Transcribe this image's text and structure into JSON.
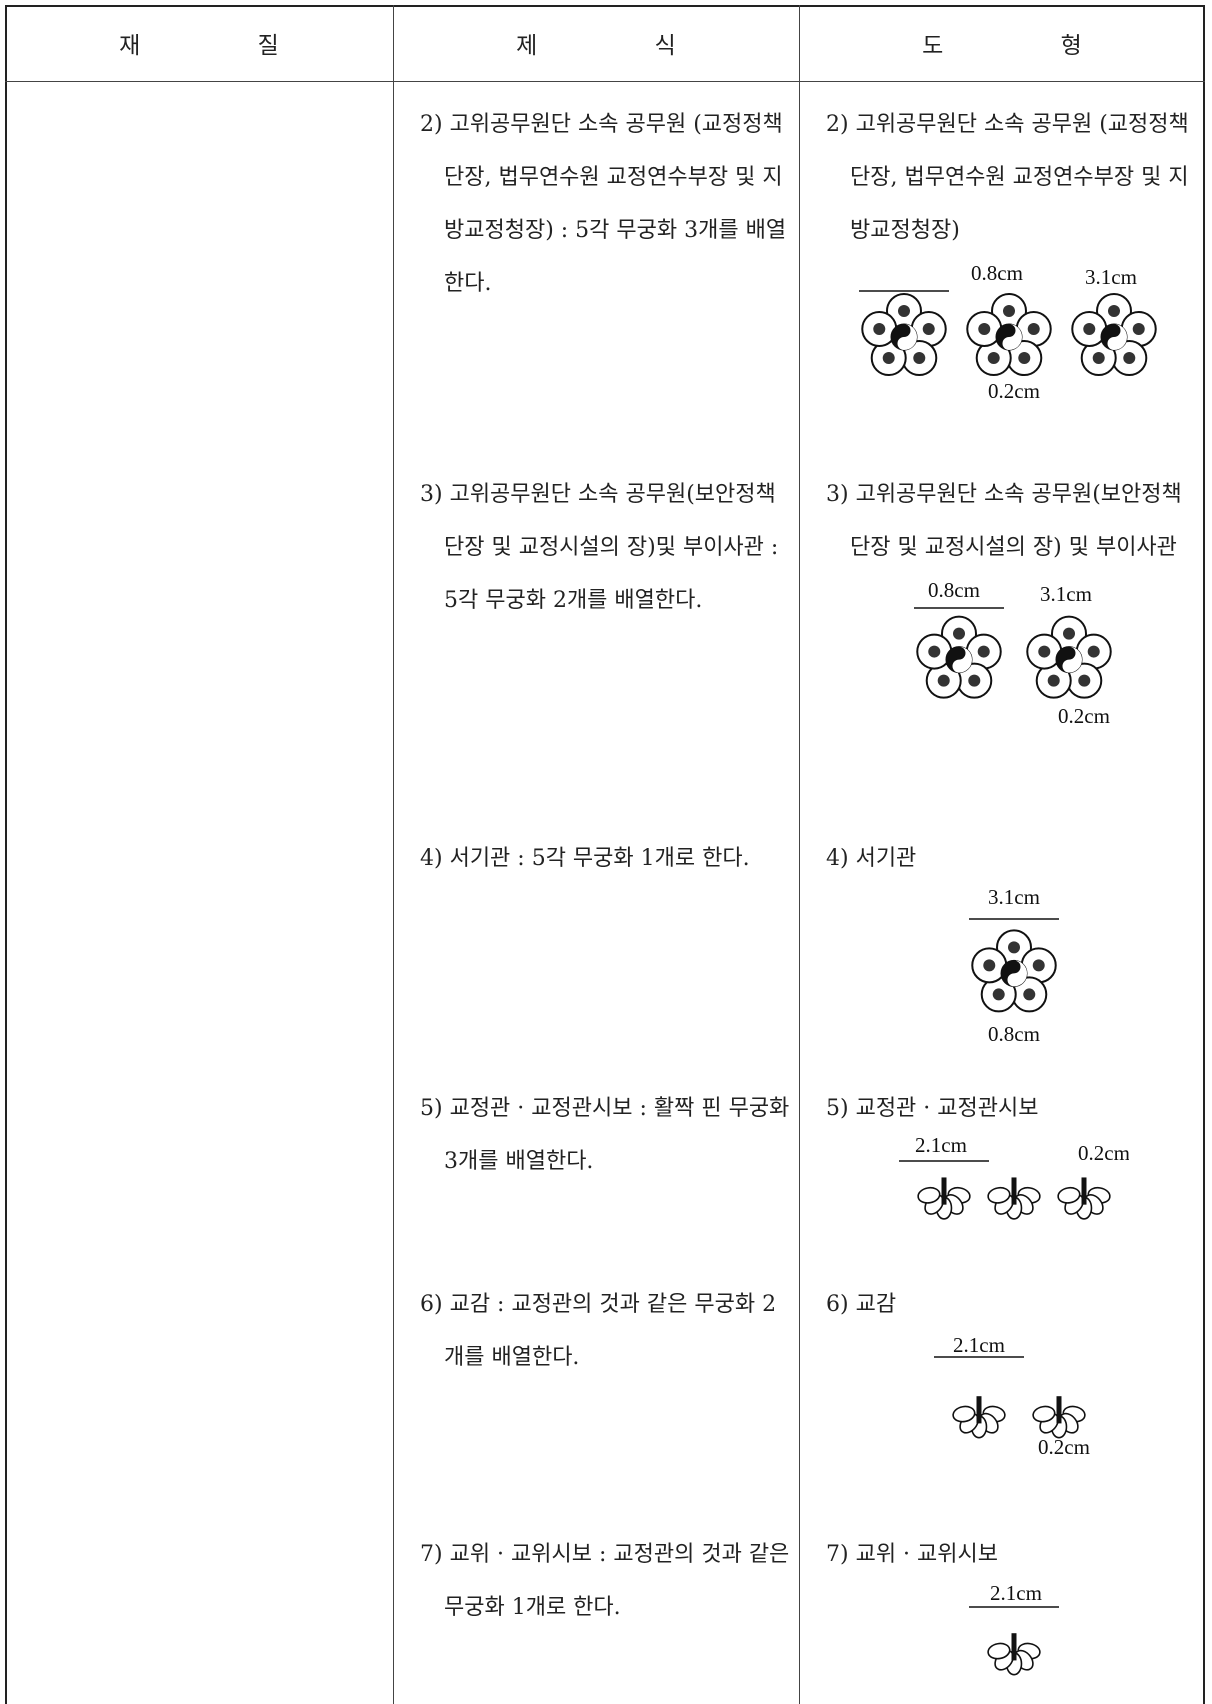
{
  "table": {
    "headers": [
      "재 질",
      "제 식",
      "도 형"
    ],
    "rows": [
      {
        "desc": "2) 고위공무원단 소속 공무원 (교정정책단장, 법무연수원 교정연수부장 및 지방교정청장) : 5각 무궁화 3개를 배열한다.",
        "figure_title": "2) 고위공무원단 소속 공무원 (교정정책단장, 법무연수원 교정연수부장 및 지방교정청장)",
        "dims": [
          "0.8cm",
          "3.1cm",
          "0.2cm"
        ]
      },
      {
        "desc": "3) 고위공무원단 소속 공무원(보안정책단장 및 교정시설의 장)및 부이사관 : 5각 무궁화 2개를 배열한다.",
        "figure_title": "3) 고위공무원단 소속 공무원(보안정책단장 및 교정시설의 장) 및 부이사관",
        "dims": [
          "0.8cm",
          "3.1cm",
          "0.2cm"
        ]
      },
      {
        "desc": "4) 서기관 : 5각 무궁화 1개로 한다.",
        "figure_title": "4) 서기관",
        "dims": [
          "3.1cm",
          "0.8cm"
        ]
      },
      {
        "desc": "5) 교정관 · 교정관시보 : 활짝 핀 무궁화 3개를 배열한다.",
        "figure_title": "5) 교정관 · 교정관시보",
        "dims": [
          "2.1cm",
          "0.2cm"
        ]
      },
      {
        "desc": "6) 교감 : 교정관의 것과 같은 무궁화 2개를 배열한다.",
        "figure_title": "6) 교감",
        "dims": [
          "2.1cm",
          "0.2cm"
        ]
      },
      {
        "desc": "7) 교위 · 교위시보 : 교정관의 것과 같은 무궁화 1개로 한다.",
        "figure_title": "7) 교위 · 교위시보",
        "dims": [
          "2.1cm"
        ]
      }
    ]
  }
}
